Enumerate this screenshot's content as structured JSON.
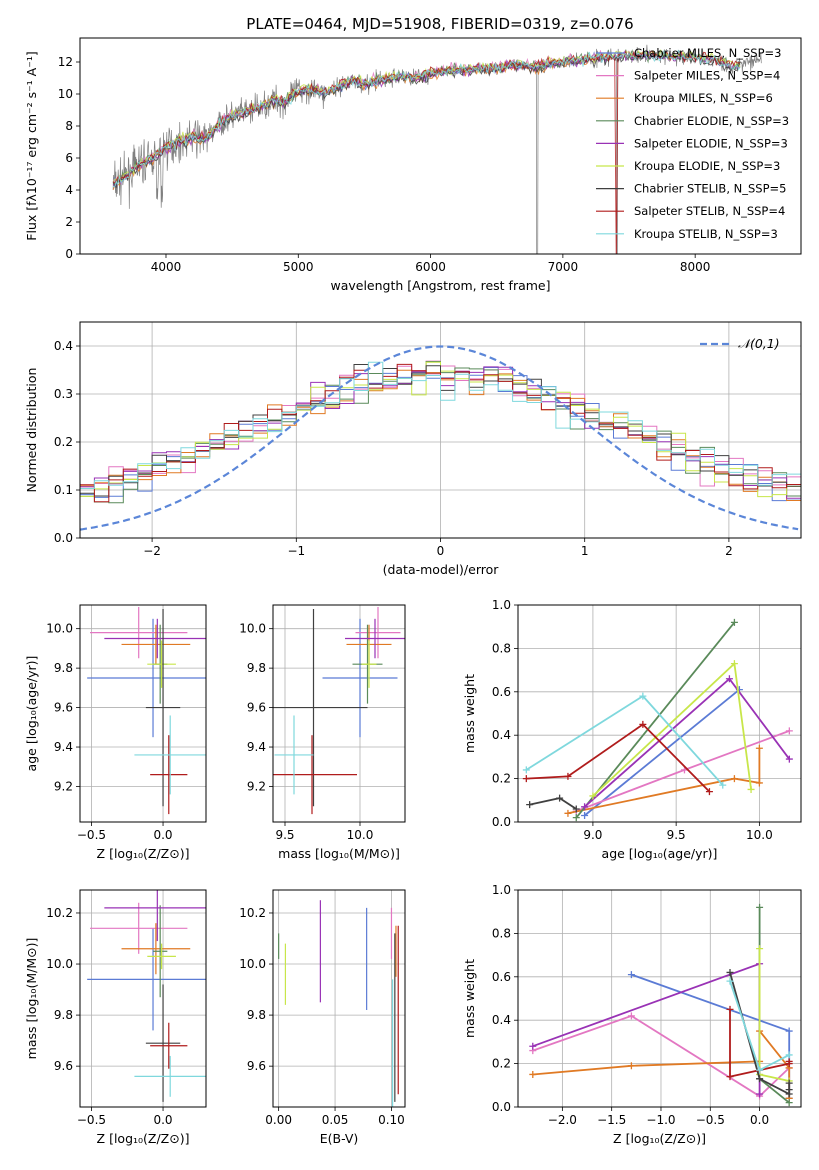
{
  "chart_data": [
    {
      "panel": "spectrum",
      "type": "line",
      "title": "PLATE=0464, MJD=51908, FIBERID=0319, z=0.076",
      "xlabel": "wavelength [Angstrom, rest frame]",
      "ylabel": "Flux [fλ10⁻¹⁷ erg cm⁻² s⁻¹ A⁻¹]",
      "xlim": [
        3350,
        8800
      ],
      "ylim": [
        0,
        13.5
      ],
      "xticks": [
        4000,
        5000,
        6000,
        7000,
        8000
      ],
      "yticks": [
        0,
        2,
        4,
        6,
        8,
        10,
        12
      ],
      "grid": false,
      "legend_position": "right",
      "data_color": "#808080",
      "legend": [
        {
          "label": "Chabrier MILES, N_SSP=3",
          "color": "#5b7bd5"
        },
        {
          "label": "Salpeter MILES, N_SSP=4",
          "color": "#e377c2"
        },
        {
          "label": "Kroupa MILES, N_SSP=6",
          "color": "#e07a24"
        },
        {
          "label": "Chabrier ELODIE, N_SSP=3",
          "color": "#5a8a5a"
        },
        {
          "label": "Salpeter ELODIE, N_SSP=3",
          "color": "#9932b5"
        },
        {
          "label": "Kroupa ELODIE, N_SSP=3",
          "color": "#c8e64a"
        },
        {
          "label": "Chabrier STELIB, N_SSP=5",
          "color": "#404040"
        },
        {
          "label": "Salpeter STELIB, N_SSP=4",
          "color": "#b01c1c"
        },
        {
          "label": "Kroupa STELIB, N_SSP=3",
          "color": "#7fd8dd"
        }
      ],
      "continuum": [
        [
          3600,
          4.3
        ],
        [
          3700,
          4.9
        ],
        [
          3800,
          5.6
        ],
        [
          3900,
          6.0
        ],
        [
          4000,
          6.7
        ],
        [
          4100,
          7.0
        ],
        [
          4200,
          7.3
        ],
        [
          4300,
          7.2
        ],
        [
          4400,
          8.1
        ],
        [
          4500,
          8.6
        ],
        [
          4600,
          8.9
        ],
        [
          4700,
          9.1
        ],
        [
          4800,
          9.6
        ],
        [
          4900,
          9.5
        ],
        [
          5000,
          10.2
        ],
        [
          5100,
          10.3
        ],
        [
          5200,
          10.1
        ],
        [
          5300,
          10.4
        ],
        [
          5400,
          10.9
        ],
        [
          5500,
          10.6
        ],
        [
          5600,
          10.8
        ],
        [
          5700,
          11.0
        ],
        [
          5800,
          11.1
        ],
        [
          5900,
          11.0
        ],
        [
          6000,
          11.3
        ],
        [
          6100,
          11.4
        ],
        [
          6200,
          11.5
        ],
        [
          6300,
          11.5
        ],
        [
          6400,
          11.6
        ],
        [
          6500,
          11.6
        ],
        [
          6600,
          11.8
        ],
        [
          6700,
          11.8
        ],
        [
          6800,
          11.7
        ],
        [
          6900,
          11.9
        ],
        [
          7000,
          12.0
        ],
        [
          7100,
          12.1
        ],
        [
          7200,
          12.2
        ],
        [
          7300,
          12.3
        ],
        [
          7400,
          12.3
        ],
        [
          7500,
          12.4
        ],
        [
          7700,
          12.4
        ],
        [
          7900,
          12.3
        ],
        [
          8100,
          12.2
        ],
        [
          8300,
          11.7
        ],
        [
          8400,
          12.1
        ],
        [
          8500,
          12.2
        ]
      ]
    },
    {
      "panel": "residuals",
      "type": "step",
      "xlabel": "(data-model)/error",
      "ylabel": "Normed distribution",
      "xlim": [
        -2.5,
        2.5
      ],
      "ylim": [
        0,
        0.45
      ],
      "xticks": [
        -2,
        -1,
        0,
        1,
        2
      ],
      "yticks": [
        0.0,
        0.1,
        0.2,
        0.3,
        0.4
      ],
      "grid": true,
      "legend_position": "top-right",
      "reference_label": "𝒩(0,1)",
      "reference_color": "#5b86d8",
      "bin_width": 0.1,
      "series_colors": [
        "#5b7bd5",
        "#e377c2",
        "#e07a24",
        "#5a8a5a",
        "#9932b5",
        "#c8e64a",
        "#404040",
        "#b01c1c",
        "#7fd8dd"
      ]
    },
    {
      "panel": "age_vs_Z",
      "type": "errorbar",
      "xlabel": "Z [log₁₀(Z/Z⊙)]",
      "ylabel": "age  [log₁₀(age/yr)]",
      "xlim": [
        -0.58,
        0.3
      ],
      "ylim": [
        9.02,
        10.12
      ],
      "xticks": [
        -0.5,
        0.0
      ],
      "yticks": [
        9.2,
        9.4,
        9.6,
        9.8,
        10.0
      ],
      "grid": true,
      "points": [
        {
          "color": "#5b7bd5",
          "x": -0.07,
          "y": 9.75,
          "xerr": 0.46,
          "yerr": 0.3
        },
        {
          "color": "#e377c2",
          "x": -0.17,
          "y": 9.98,
          "xerr": 0.34,
          "yerr": 0.13
        },
        {
          "color": "#e07a24",
          "x": -0.05,
          "y": 9.92,
          "xerr": 0.24,
          "yerr": 0.1
        },
        {
          "color": "#5a8a5a",
          "x": -0.02,
          "y": 9.82,
          "xerr": 0.05,
          "yerr": 0.2
        },
        {
          "color": "#9932b5",
          "x": -0.04,
          "y": 9.95,
          "xerr": 0.37,
          "yerr": 0.1
        },
        {
          "color": "#c8e64a",
          "x": -0.01,
          "y": 9.82,
          "xerr": 0.1,
          "yerr": 0.12
        },
        {
          "color": "#404040",
          "x": 0.0,
          "y": 9.6,
          "xerr": 0.12,
          "yerr": 0.5
        },
        {
          "color": "#b01c1c",
          "x": 0.04,
          "y": 9.26,
          "xerr": 0.13,
          "yerr": 0.2
        },
        {
          "color": "#7fd8dd",
          "x": 0.05,
          "y": 9.36,
          "xerr": 0.25,
          "yerr": 0.2
        }
      ]
    },
    {
      "panel": "age_vs_mass",
      "type": "errorbar",
      "xlabel": "mass [log₁₀(M/M⊙)]",
      "ylabel": "",
      "xlim": [
        9.42,
        10.3
      ],
      "ylim": [
        9.02,
        10.12
      ],
      "xticks": [
        9.5,
        10.0
      ],
      "yticks": [
        9.2,
        9.4,
        9.6,
        9.8,
        10.0
      ],
      "grid": true,
      "points": [
        {
          "color": "#5b7bd5",
          "x": 10.0,
          "y": 9.75,
          "xerr": 0.25,
          "yerr": 0.3
        },
        {
          "color": "#e377c2",
          "x": 10.12,
          "y": 9.98,
          "xerr": 0.15,
          "yerr": 0.13
        },
        {
          "color": "#e07a24",
          "x": 10.06,
          "y": 9.92,
          "xerr": 0.15,
          "yerr": 0.1
        },
        {
          "color": "#5a8a5a",
          "x": 10.05,
          "y": 9.82,
          "xerr": 0.1,
          "yerr": 0.2
        },
        {
          "color": "#9932b5",
          "x": 10.1,
          "y": 9.95,
          "xerr": 0.2,
          "yerr": 0.1
        },
        {
          "color": "#c8e64a",
          "x": 10.06,
          "y": 9.82,
          "xerr": 0.05,
          "yerr": 0.12
        },
        {
          "color": "#404040",
          "x": 9.69,
          "y": 9.6,
          "xerr": 0.36,
          "yerr": 0.5
        },
        {
          "color": "#b01c1c",
          "x": 9.68,
          "y": 9.26,
          "xerr": 0.3,
          "yerr": 0.2
        },
        {
          "color": "#7fd8dd",
          "x": 9.56,
          "y": 9.36,
          "xerr": 0.13,
          "yerr": 0.2
        }
      ]
    },
    {
      "panel": "weight_vs_age",
      "type": "line",
      "xlabel": "age  [log₁₀(age/yr)]",
      "ylabel": "mass weight",
      "xlim": [
        8.55,
        10.25
      ],
      "ylim": [
        0,
        1
      ],
      "xticks": [
        9.0,
        9.5,
        10.0
      ],
      "yticks": [
        0.0,
        0.2,
        0.4,
        0.6,
        0.8,
        1.0
      ],
      "grid": true,
      "series": [
        {
          "color": "#5b7bd5",
          "x": [
            8.95,
            9.88
          ],
          "y": [
            0.03,
            0.61
          ]
        },
        {
          "color": "#e377c2",
          "x": [
            8.9,
            9.55,
            10.18
          ],
          "y": [
            0.05,
            0.24,
            0.42
          ]
        },
        {
          "color": "#e07a24",
          "x": [
            8.85,
            9.85,
            10.0,
            10.0
          ],
          "y": [
            0.04,
            0.2,
            0.18,
            0.34
          ]
        },
        {
          "color": "#5a8a5a",
          "x": [
            8.9,
            9.85
          ],
          "y": [
            0.02,
            0.92
          ]
        },
        {
          "color": "#9932b5",
          "x": [
            8.95,
            9.82,
            10.18
          ],
          "y": [
            0.07,
            0.66,
            0.29
          ]
        },
        {
          "color": "#c8e64a",
          "x": [
            9.0,
            9.85,
            9.95
          ],
          "y": [
            0.12,
            0.73,
            0.15
          ]
        },
        {
          "color": "#404040",
          "x": [
            8.62,
            8.8,
            8.9
          ],
          "y": [
            0.08,
            0.11,
            0.06
          ]
        },
        {
          "color": "#b01c1c",
          "x": [
            8.6,
            8.85,
            9.3,
            9.7
          ],
          "y": [
            0.2,
            0.21,
            0.45,
            0.14
          ]
        },
        {
          "color": "#7fd8dd",
          "x": [
            8.6,
            9.3,
            9.78
          ],
          "y": [
            0.24,
            0.58,
            0.17
          ]
        }
      ]
    },
    {
      "panel": "mass_vs_Z",
      "type": "errorbar",
      "xlabel": "Z [log₁₀(Z/Z⊙)]",
      "ylabel": "mass [log₁₀(M/M⊙)]",
      "xlim": [
        -0.58,
        0.3
      ],
      "ylim": [
        9.44,
        10.29
      ],
      "xticks": [
        -0.5,
        0.0
      ],
      "yticks": [
        9.6,
        9.8,
        10.0,
        10.2
      ],
      "grid": true,
      "points": [
        {
          "color": "#5b7bd5",
          "x": -0.07,
          "y": 9.94,
          "xerr": 0.46,
          "yerr": 0.2
        },
        {
          "color": "#e377c2",
          "x": -0.17,
          "y": 10.14,
          "xerr": 0.34,
          "yerr": 0.1
        },
        {
          "color": "#e07a24",
          "x": -0.05,
          "y": 10.06,
          "xerr": 0.24,
          "yerr": 0.1
        },
        {
          "color": "#5a8a5a",
          "x": -0.02,
          "y": 10.05,
          "xerr": 0.05,
          "yerr": 0.18
        },
        {
          "color": "#9932b5",
          "x": -0.04,
          "y": 10.22,
          "xerr": 0.37,
          "yerr": 0.13
        },
        {
          "color": "#c8e64a",
          "x": -0.01,
          "y": 10.03,
          "xerr": 0.1,
          "yerr": 0.05
        },
        {
          "color": "#404040",
          "x": 0.0,
          "y": 9.69,
          "xerr": 0.12,
          "yerr": 0.23
        },
        {
          "color": "#b01c1c",
          "x": 0.04,
          "y": 9.68,
          "xerr": 0.13,
          "yerr": 0.09
        },
        {
          "color": "#7fd8dd",
          "x": 0.05,
          "y": 9.56,
          "xerr": 0.25,
          "yerr": 0.08
        }
      ]
    },
    {
      "panel": "mass_vs_ebv",
      "type": "errorbar",
      "xlabel": "E(B-V)",
      "ylabel": "",
      "xlim": [
        -0.005,
        0.112
      ],
      "ylim": [
        9.44,
        10.29
      ],
      "xticks": [
        0.0,
        0.05,
        0.1
      ],
      "yticks": [
        9.6,
        9.8,
        10.0,
        10.2
      ],
      "grid": true,
      "points": [
        {
          "color": "#5a8a5a",
          "x": 0.0,
          "y": 10.07,
          "xerr": 0,
          "yerr": 0.05
        },
        {
          "color": "#c8e64a",
          "x": 0.006,
          "y": 9.96,
          "xerr": 0,
          "yerr": 0.12
        },
        {
          "color": "#9932b5",
          "x": 0.037,
          "y": 10.05,
          "xerr": 0,
          "yerr": 0.2
        },
        {
          "color": "#5b7bd5",
          "x": 0.078,
          "y": 10.02,
          "xerr": 0,
          "yerr": 0.2
        },
        {
          "color": "#e377c2",
          "x": 0.1,
          "y": 10.12,
          "xerr": 0,
          "yerr": 0.1
        },
        {
          "color": "#e07a24",
          "x": 0.104,
          "y": 10.05,
          "xerr": 0,
          "yerr": 0.1
        },
        {
          "color": "#404040",
          "x": 0.103,
          "y": 9.79,
          "xerr": 0,
          "yerr": 0.33
        },
        {
          "color": "#b01c1c",
          "x": 0.106,
          "y": 9.82,
          "xerr": 0,
          "yerr": 0.33
        },
        {
          "color": "#7fd8dd",
          "x": 0.101,
          "y": 9.69,
          "xerr": 0,
          "yerr": 0.25
        }
      ]
    },
    {
      "panel": "weight_vs_Z",
      "type": "line",
      "xlabel": "Z [log₁₀(Z/Z⊙)]",
      "ylabel": "mass weight",
      "xlim": [
        -2.45,
        0.42
      ],
      "ylim": [
        0,
        1
      ],
      "xticks": [
        -2.0,
        -1.5,
        -1.0,
        -0.5,
        0.0
      ],
      "yticks": [
        0.0,
        0.2,
        0.4,
        0.6,
        0.8,
        1.0
      ],
      "grid": true,
      "series": [
        {
          "color": "#5b7bd5",
          "x": [
            -1.3,
            0.3,
            0.3
          ],
          "y": [
            0.61,
            0.35,
            0.04
          ]
        },
        {
          "color": "#e377c2",
          "x": [
            -2.3,
            -1.3,
            0.0,
            0.3
          ],
          "y": [
            0.26,
            0.42,
            0.05,
            0.18
          ]
        },
        {
          "color": "#e07a24",
          "x": [
            -2.3,
            -1.3,
            0.0,
            0.0,
            0.3,
            0.3
          ],
          "y": [
            0.15,
            0.19,
            0.21,
            0.35,
            0.18,
            0.04
          ]
        },
        {
          "color": "#5a8a5a",
          "x": [
            0.0,
            0.0,
            0.3
          ],
          "y": [
            0.92,
            0.13,
            0.02
          ]
        },
        {
          "color": "#9932b5",
          "x": [
            -2.3,
            0.0,
            0.0
          ],
          "y": [
            0.28,
            0.66,
            0.06
          ]
        },
        {
          "color": "#c8e64a",
          "x": [
            0.0,
            0.0,
            0.3
          ],
          "y": [
            0.73,
            0.15,
            0.12
          ]
        },
        {
          "color": "#404040",
          "x": [
            -0.3,
            0.0,
            0.3,
            0.3,
            0.3
          ],
          "y": [
            0.62,
            0.13,
            0.06,
            0.08,
            0.11
          ]
        },
        {
          "color": "#b01c1c",
          "x": [
            -0.3,
            -0.3,
            0.0,
            0.3,
            0.3
          ],
          "y": [
            0.45,
            0.14,
            0.17,
            0.2,
            0.21
          ]
        },
        {
          "color": "#7fd8dd",
          "x": [
            -0.3,
            0.0,
            0.3
          ],
          "y": [
            0.58,
            0.17,
            0.24
          ]
        }
      ]
    }
  ]
}
